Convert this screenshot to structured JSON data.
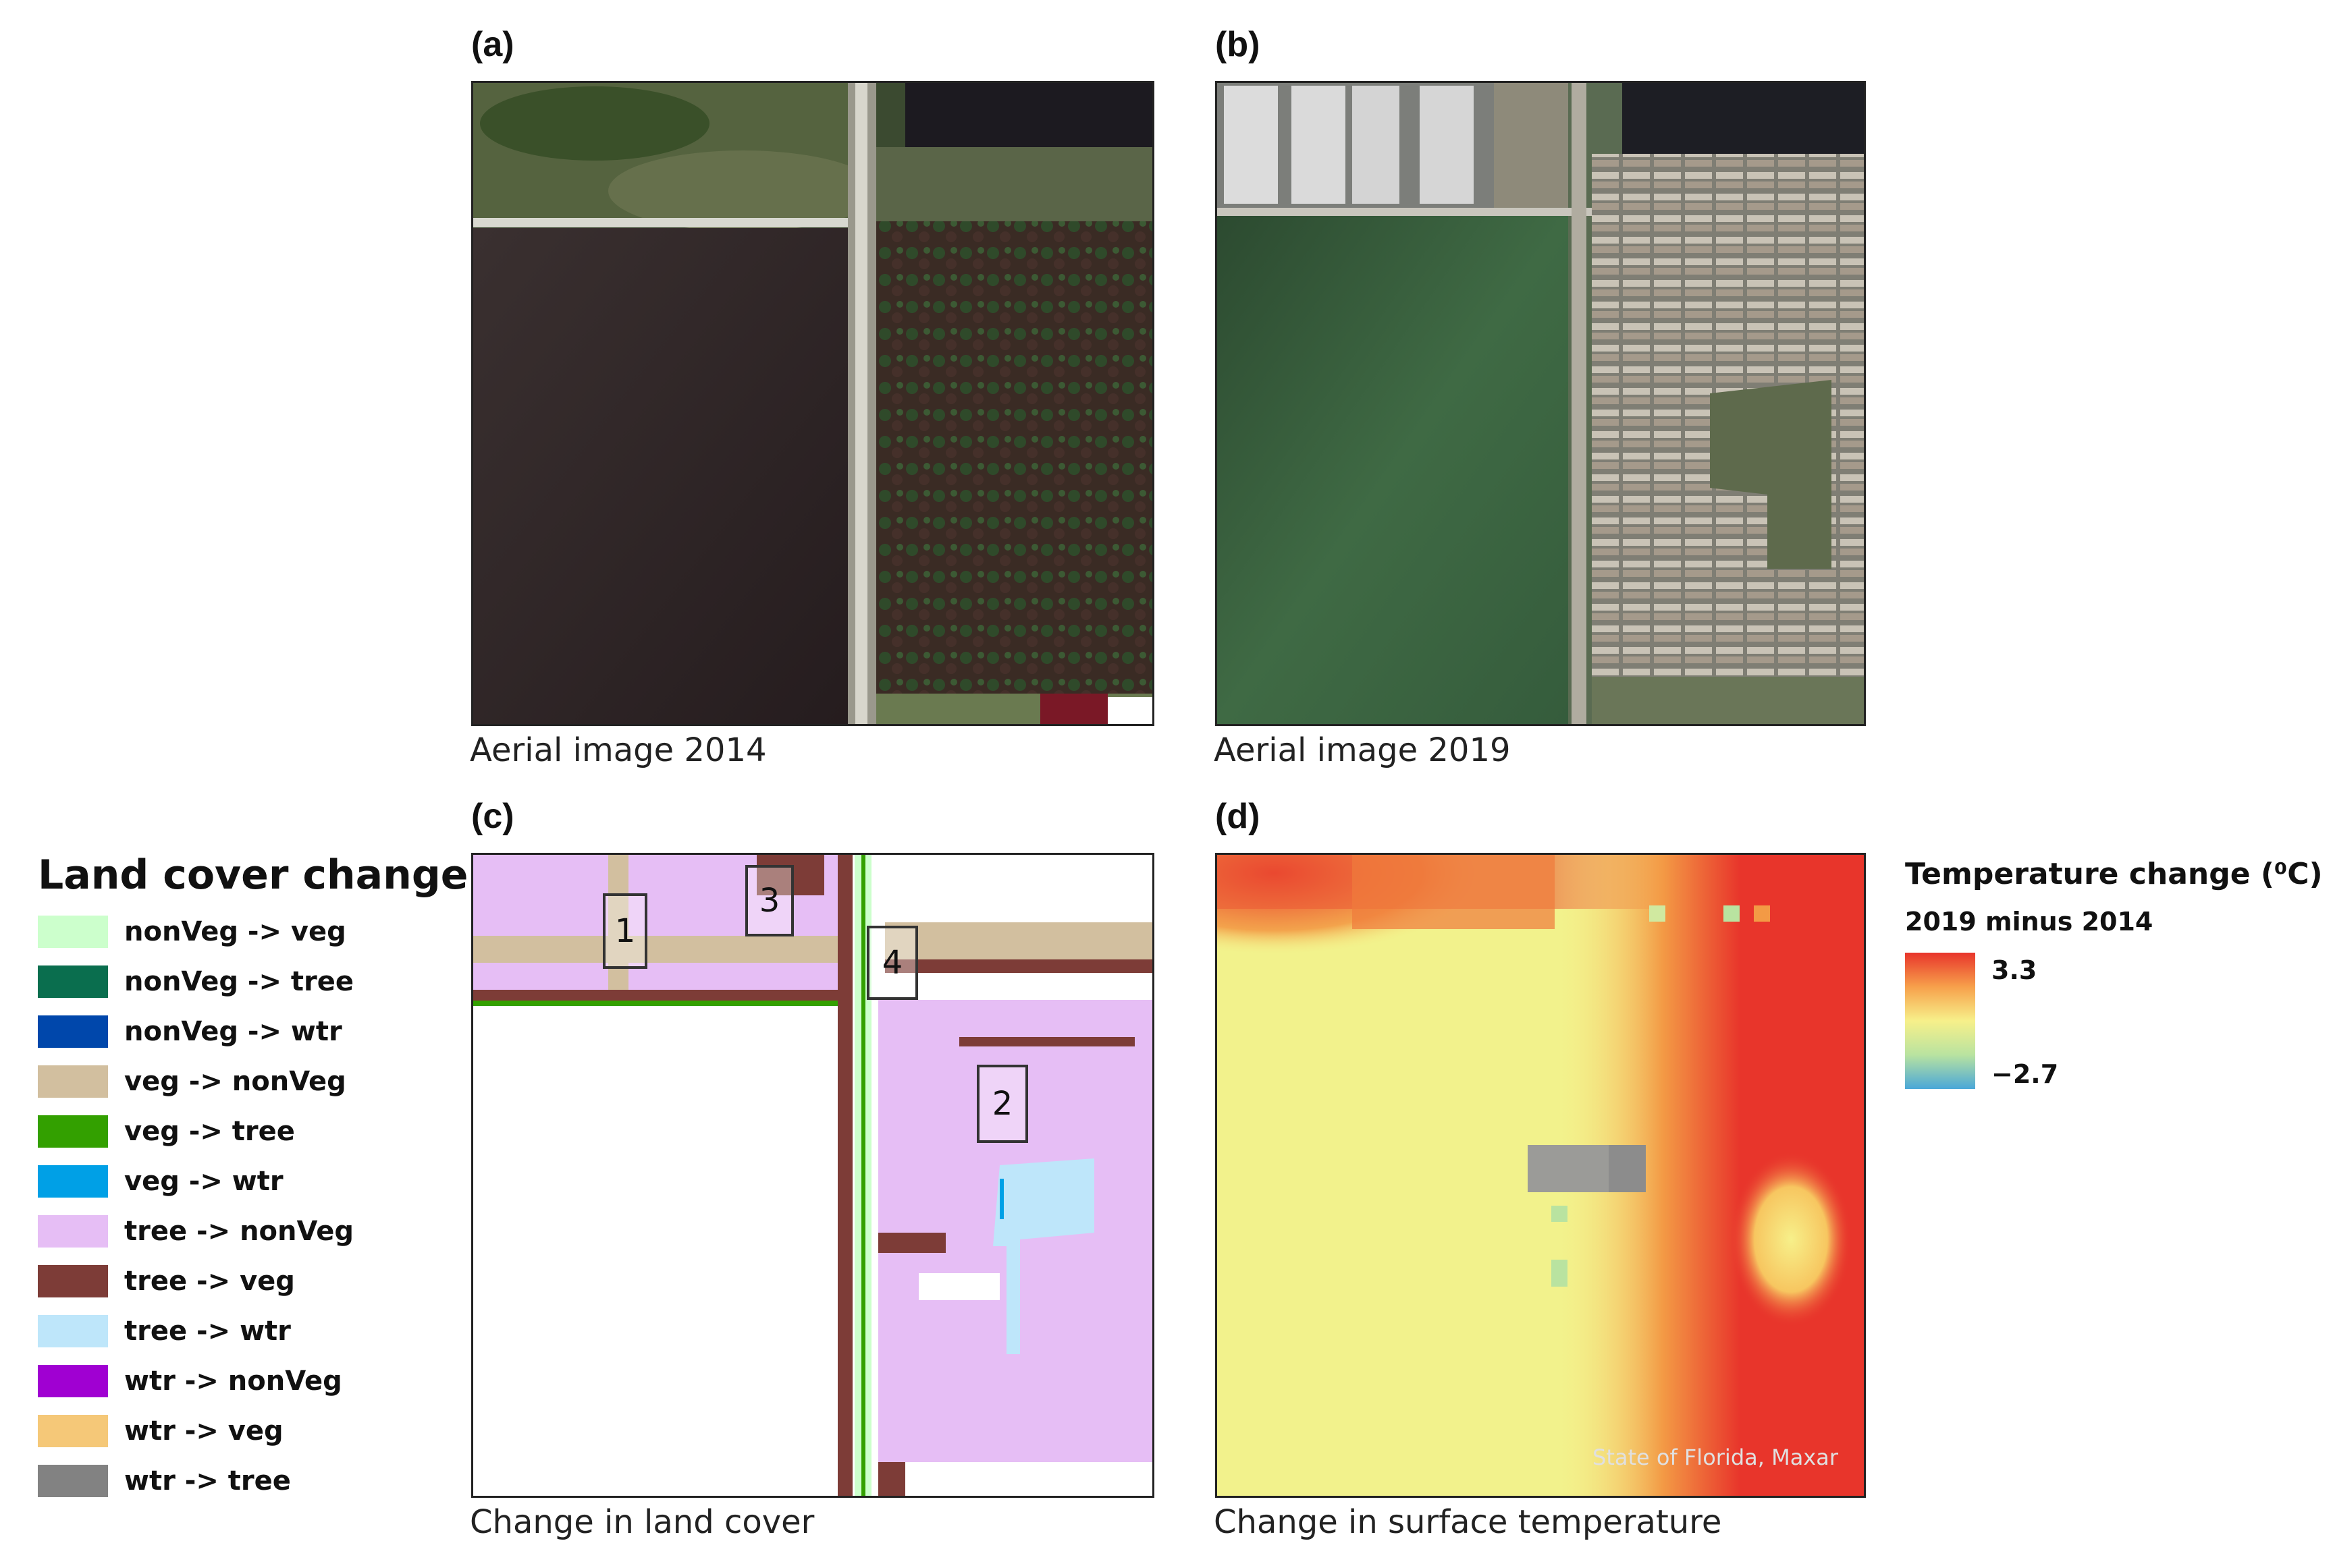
{
  "panels": {
    "a": {
      "label": "(a)",
      "caption": "Aerial image 2014"
    },
    "b": {
      "label": "(b)",
      "caption": "Aerial image 2019"
    },
    "c": {
      "label": "(c)",
      "caption": "Change in land cover"
    },
    "d": {
      "label": "(d)",
      "caption": "Change in surface temperature",
      "credit": "State of Florida, Maxar"
    }
  },
  "land_cover_legend": {
    "title": "Land cover change",
    "items": [
      {
        "label": "nonVeg -> veg",
        "color": "#ccffcc"
      },
      {
        "label": "nonVeg -> tree",
        "color": "#0a6e4e"
      },
      {
        "label": "nonVeg -> wtr",
        "color": "#0047ab"
      },
      {
        "label": "veg -> nonVeg",
        "color": "#d2bf9f"
      },
      {
        "label": "veg -> tree",
        "color": "#33a000"
      },
      {
        "label": "veg -> wtr",
        "color": "#00a0e6"
      },
      {
        "label": "tree -> nonVeg",
        "color": "#e6bef5"
      },
      {
        "label": "tree -> veg",
        "color": "#7d3c37"
      },
      {
        "label": "tree -> wtr",
        "color": "#bee6fa"
      },
      {
        "label": "wtr -> nonVeg",
        "color": "#a000d2"
      },
      {
        "label": "wtr -> veg",
        "color": "#f5c878"
      },
      {
        "label": "wtr -> tree",
        "color": "#828282"
      }
    ]
  },
  "study_areas": [
    "1",
    "2",
    "3",
    "4"
  ],
  "temperature_legend": {
    "title": "Temperature change (⁰C)",
    "subtitle": "2019 minus 2014",
    "max": "3.3",
    "min": "−2.7",
    "colors": [
      "#e8352b",
      "#f7a04b",
      "#f7f08a",
      "#b9e3a0",
      "#4aa7d8"
    ]
  }
}
